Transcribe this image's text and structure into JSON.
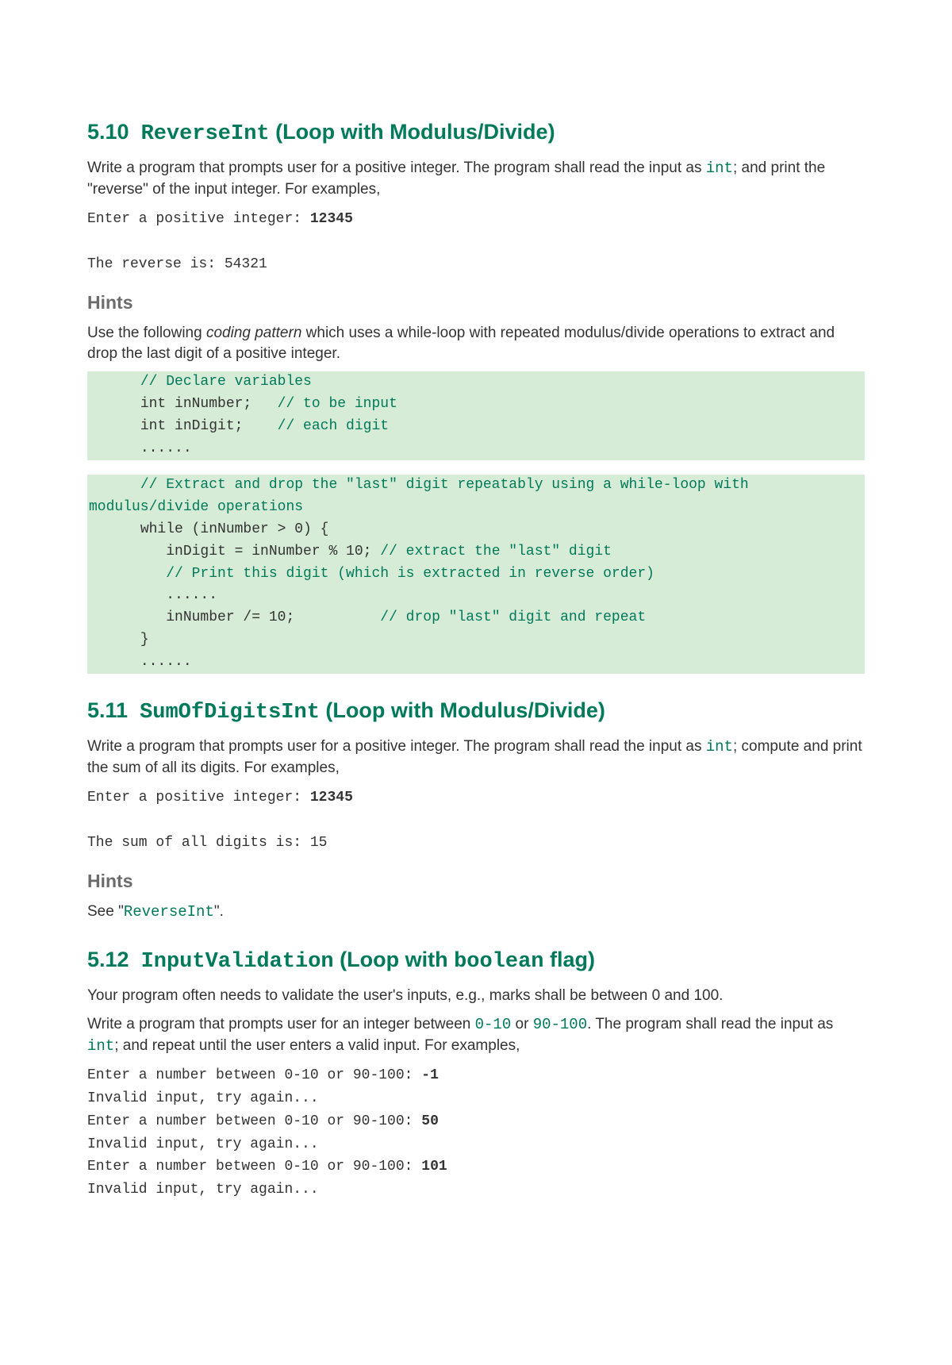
{
  "colors": {
    "heading": "#007a5a",
    "subheading": "#6b6b6b",
    "codeInline": "#007a5a",
    "codeBg": "#d6ecd6",
    "codeComment": "#007a5a",
    "text": "#333333",
    "pageBg": "#ffffff"
  },
  "typography": {
    "bodyFont": "Arial",
    "monoFont": "Lucida Console / Consolas / Courier New",
    "bodySizePx": 19,
    "headingSizePx": 27,
    "subheadingSizePx": 23,
    "codeSizePx": 18
  },
  "s510": {
    "num": "5.10",
    "titleMono": "ReverseInt",
    "titleRest": " (Loop with Modulus/Divide)",
    "paraPre": "Write a program that prompts user for a positive integer. The program shall read the input as ",
    "paraCode": "int",
    "paraPost": "; and print the \"reverse\" of the input integer. For examples,",
    "console": {
      "l1a": "Enter a positive integer: ",
      "l1b": "12345",
      "l2": "The reverse is: 54321"
    },
    "hintsHeading": "Hints",
    "hintsPre": "Use the following ",
    "hintsEm": "coding pattern",
    "hintsPost": " which uses a while-loop with repeated modulus/divide operations to extract and drop the last digit of a positive integer.",
    "code": {
      "l1_indent": "      ",
      "l1_cmt": "// Declare variables",
      "l2_txt": "      int inNumber;   ",
      "l2_cmt": "// to be input",
      "l3_txt": "      int inDigit;    ",
      "l3_cmt": "// each digit",
      "l4": "      ......",
      "l5_indent": "      ",
      "l5_cmt": "// Extract and drop the \"last\" digit repeatably using a while-loop with modulus/divide operations",
      "l6": "      while (inNumber > 0) {",
      "l7_txt": "         inDigit = inNumber % 10; ",
      "l7_cmt": "// extract the \"last\" digit",
      "l8_indent": "         ",
      "l8_cmt": "// Print this digit (which is extracted in reverse order)",
      "l9": "         ......",
      "l10_txt": "         inNumber /= 10;          ",
      "l10_cmt": "// drop \"last\" digit and repeat",
      "l11": "      }",
      "l12": "      ......"
    }
  },
  "s511": {
    "num": "5.11",
    "titleMono": "SumOfDigitsInt",
    "titleRest": " (Loop with Modulus/Divide)",
    "paraPre": "Write a program that prompts user for a positive integer. The program shall read the input as ",
    "paraCode": "int",
    "paraPost": "; compute and print the sum of all its digits. For examples,",
    "console": {
      "l1a": "Enter a positive integer: ",
      "l1b": "12345",
      "l2": "The sum of all digits is: 15"
    },
    "hintsHeading": "Hints",
    "seePre": "See \"",
    "seeCode": "ReverseInt",
    "seePost": "\"."
  },
  "s512": {
    "num": "5.12",
    "titleMono": "InputValidation",
    "titleRestA": " (Loop with ",
    "titleRestMono2": "boolean",
    "titleRestB": " flag)",
    "p1": "Your program often needs to validate the user's inputs, e.g., marks shall be between 0 and 100.",
    "p2a": "Write a program that prompts user for an integer between ",
    "p2code1": "0-10",
    "p2mid": " or ",
    "p2code2": "90-100",
    "p2b": ". The program shall read the input as ",
    "p2code3": "int",
    "p2c": "; and repeat until the user enters a valid input. For examples,",
    "console": {
      "prompt": "Enter a number between 0-10 or 90-100: ",
      "invalid": "Invalid input, try again...",
      "in1": "-1",
      "in2": "50",
      "in3": "101"
    }
  }
}
